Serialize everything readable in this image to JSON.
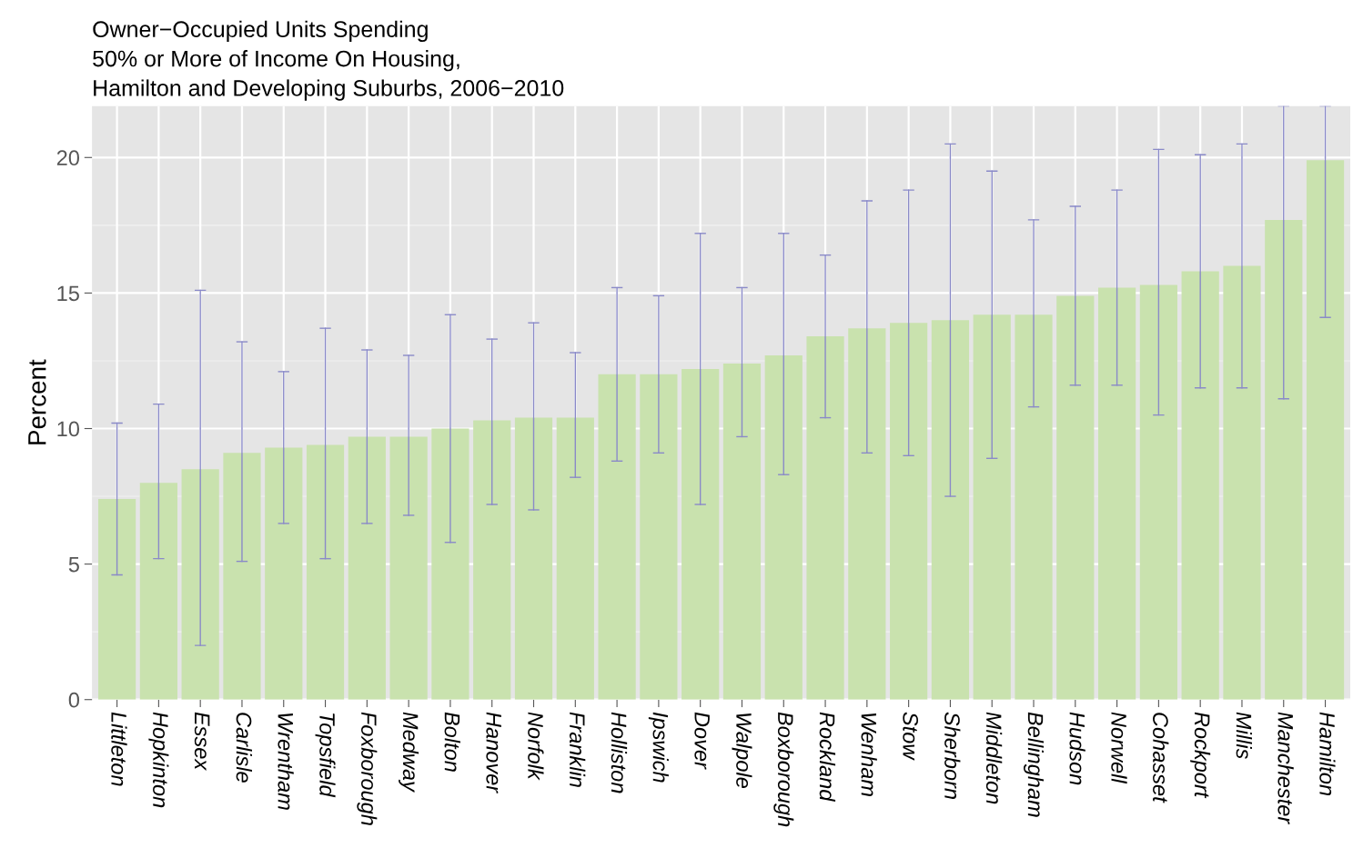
{
  "chart_data": {
    "type": "bar",
    "title": "Owner−Occupied Units Spending\n50% or More of Income On Housing,\nHamilton and Developing Suburbs, 2006−2010",
    "ylabel": "Percent",
    "categories": [
      "Littleton",
      "Hopkinton",
      "Essex",
      "Carlisle",
      "Wrentham",
      "Topsfield",
      "Foxborough",
      "Medway",
      "Bolton",
      "Hanover",
      "Norfolk",
      "Franklin",
      "Holliston",
      "Ipswich",
      "Dover",
      "Walpole",
      "Boxborough",
      "Rockland",
      "Wenham",
      "Stow",
      "Sherborn",
      "Middleton",
      "Bellingham",
      "Hudson",
      "Norwell",
      "Cohasset",
      "Rockport",
      "Millis",
      "Manchester",
      "Hamilton"
    ],
    "series": [
      {
        "color": "#c9e2ae",
        "values": [
          7.4,
          8.0,
          8.5,
          9.1,
          9.3,
          9.4,
          9.7,
          9.7,
          10.0,
          10.3,
          10.4,
          10.4,
          12.0,
          12.0,
          12.2,
          12.4,
          12.7,
          13.4,
          13.7,
          13.9,
          14.0,
          14.2,
          14.2,
          14.9,
          15.2,
          15.3,
          15.8,
          16.0,
          17.7,
          19.9
        ],
        "errors": [
          [
            4.6,
            10.2
          ],
          [
            5.2,
            10.9
          ],
          [
            2.0,
            15.1
          ],
          [
            5.1,
            13.2
          ],
          [
            6.5,
            12.1
          ],
          [
            5.2,
            13.7
          ],
          [
            6.5,
            12.9
          ],
          [
            6.8,
            12.7
          ],
          [
            5.8,
            14.2
          ],
          [
            7.2,
            13.3
          ],
          [
            7.0,
            13.9
          ],
          [
            8.2,
            12.8
          ],
          [
            8.8,
            15.2
          ],
          [
            9.1,
            14.9
          ],
          [
            7.2,
            17.2
          ],
          [
            9.7,
            15.2
          ],
          [
            8.3,
            17.2
          ],
          [
            10.4,
            16.4
          ],
          [
            9.1,
            18.4
          ],
          [
            9.0,
            18.8
          ],
          [
            7.5,
            20.5
          ],
          [
            8.9,
            19.5
          ],
          [
            10.8,
            17.7
          ],
          [
            11.6,
            18.2
          ],
          [
            11.6,
            18.8
          ],
          [
            10.5,
            20.3
          ],
          [
            11.5,
            20.1
          ],
          [
            11.5,
            20.5
          ],
          [
            11.1,
            21.9
          ],
          [
            14.1,
            21.9
          ]
        ]
      }
    ],
    "ylim": [
      0,
      21.9
    ],
    "yticks": [
      0,
      5,
      10,
      15,
      20
    ],
    "grid": true
  }
}
